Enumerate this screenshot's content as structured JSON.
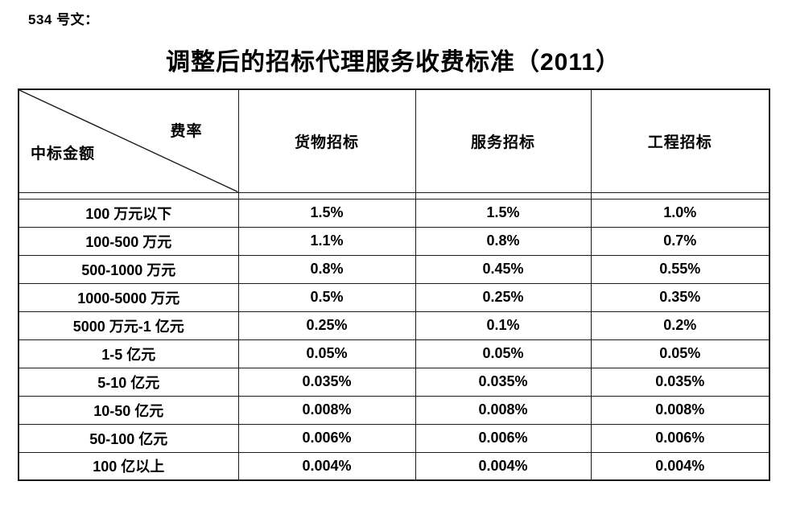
{
  "doc_number": "534 号文：",
  "title": "调整后的招标代理服务收费标准（2011）",
  "table": {
    "corner": {
      "top_right_label": "费率",
      "bottom_left_label": "中标金额"
    },
    "columns": [
      "货物招标",
      "服务招标",
      "工程招标"
    ],
    "rows": [
      {
        "label": "100 万元以下",
        "values": [
          "1.5%",
          "1.5%",
          "1.0%"
        ]
      },
      {
        "label": "100-500 万元",
        "values": [
          "1.1%",
          "0.8%",
          "0.7%"
        ]
      },
      {
        "label": "500-1000 万元",
        "values": [
          "0.8%",
          "0.45%",
          "0.55%"
        ]
      },
      {
        "label": "1000-5000 万元",
        "values": [
          "0.5%",
          "0.25%",
          "0.35%"
        ]
      },
      {
        "label": "5000 万元-1 亿元",
        "values": [
          "0.25%",
          "0.1%",
          "0.2%"
        ]
      },
      {
        "label": "1-5 亿元",
        "values": [
          "0.05%",
          "0.05%",
          "0.05%"
        ]
      },
      {
        "label": "5-10 亿元",
        "values": [
          "0.035%",
          "0.035%",
          "0.035%"
        ]
      },
      {
        "label": "10-50 亿元",
        "values": [
          "0.008%",
          "0.008%",
          "0.008%"
        ]
      },
      {
        "label": "50-100 亿元",
        "values": [
          "0.006%",
          "0.006%",
          "0.006%"
        ]
      },
      {
        "label": "100 亿以上",
        "values": [
          "0.004%",
          "0.004%",
          "0.004%"
        ]
      }
    ]
  },
  "colors": {
    "border": "#1a1a1a",
    "text": "#000000",
    "background": "#ffffff"
  }
}
